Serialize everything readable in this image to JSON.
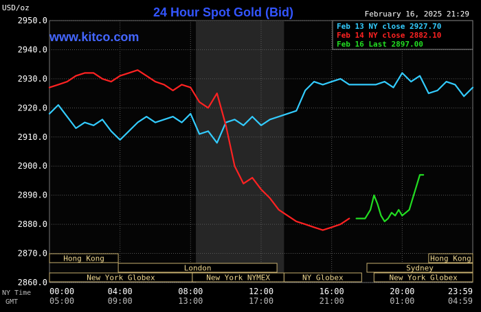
{
  "chart_data": {
    "type": "line",
    "title": "24 Hour Spot Gold (Bid)",
    "watermark": "www.kitco.com",
    "timestamp": "February 16, 2025 21:29",
    "y_unit_label": "USD/oz",
    "ylim": [
      2860,
      2950
    ],
    "y_ticks": [
      "2950.0",
      "2940.0",
      "2930.0",
      "2920.0",
      "2910.0",
      "2900.0",
      "2890.0",
      "2880.0",
      "2870.0",
      "2860.0"
    ],
    "x_ticks_ny": [
      "00:00",
      "04:00",
      "08:00",
      "12:00",
      "16:00",
      "20:00",
      "23:59"
    ],
    "x_ticks_gmt": [
      "05:00",
      "09:00",
      "13:00",
      "17:00",
      "21:00",
      "01:00",
      "04:59"
    ],
    "ny_time_label": "NY Time",
    "gmt_label": "GMT",
    "legend": [
      {
        "text": "Feb 13 NY close 2927.70",
        "color": "#33ccff"
      },
      {
        "text": "Feb 14 NY close 2882.10",
        "color": "#ff2222"
      },
      {
        "text": "Feb 16 Last 2897.00",
        "color": "#22dd22"
      }
    ],
    "series": [
      {
        "name": "Feb 13 NY close 2927.70",
        "color": "#33ccff",
        "x": [
          0,
          0.5,
          1,
          1.5,
          2,
          2.5,
          3,
          3.5,
          4,
          4.5,
          5,
          5.5,
          6,
          6.5,
          7,
          7.5,
          8,
          8.5,
          9,
          9.5,
          10,
          10.5,
          11,
          11.5,
          12,
          12.5,
          13,
          13.5,
          14,
          14.5,
          15,
          15.5,
          16,
          16.5,
          17,
          17.5,
          18,
          18.5,
          19,
          19.5,
          20,
          20.5,
          21,
          21.5,
          22,
          22.5,
          23,
          23.5,
          24
        ],
        "values": [
          2918,
          2921,
          2917,
          2913,
          2915,
          2914,
          2916,
          2912,
          2909,
          2912,
          2915,
          2917,
          2915,
          2916,
          2917,
          2915,
          2918,
          2911,
          2912,
          2908,
          2915,
          2916,
          2914,
          2917,
          2914,
          2916,
          2917,
          2918,
          2919,
          2926,
          2929,
          2928,
          2929,
          2930,
          2928,
          2928,
          2928,
          2928,
          2929,
          2927,
          2932,
          2929,
          2931,
          2925,
          2926,
          2929,
          2928,
          2924,
          2927
        ]
      },
      {
        "name": "Feb 14 NY close 2882.10",
        "color": "#ff2222",
        "x": [
          0,
          0.5,
          1,
          1.5,
          2,
          2.5,
          3,
          3.5,
          4,
          4.5,
          5,
          5.5,
          6,
          6.5,
          7,
          7.5,
          8,
          8.5,
          9,
          9.5,
          10,
          10.5,
          11,
          11.5,
          12,
          12.5,
          13,
          13.5,
          14,
          14.5,
          15,
          15.5,
          16,
          16.5,
          17
        ],
        "values": [
          2927,
          2928,
          2929,
          2931,
          2932,
          2932,
          2930,
          2929,
          2931,
          2932,
          2933,
          2931,
          2929,
          2928,
          2926,
          2928,
          2927,
          2922,
          2920,
          2925,
          2914,
          2900,
          2894,
          2896,
          2892,
          2889,
          2885,
          2883,
          2881,
          2880,
          2879,
          2878,
          2879,
          2880,
          2882
        ]
      },
      {
        "name": "Feb 16 Last 2897.00",
        "color": "#22dd22",
        "x": [
          17.4,
          17.9,
          18.2,
          18.4,
          18.6,
          18.8,
          19,
          19.2,
          19.4,
          19.6,
          19.8,
          20,
          20.2,
          20.4,
          20.6,
          20.8,
          21,
          21.2
        ],
        "values": [
          2882,
          2882,
          2885,
          2890,
          2887,
          2883,
          2881,
          2882,
          2884,
          2883,
          2885,
          2883,
          2884,
          2885,
          2889,
          2893,
          2897,
          2897
        ]
      }
    ],
    "sessions": [
      {
        "label": "Hong Kong",
        "row": 0,
        "from": 0,
        "to": 3.9
      },
      {
        "label": "Hong Kong",
        "row": 0,
        "from": 21.5,
        "to": 24
      },
      {
        "label": "London",
        "row": 1,
        "from": 3.9,
        "to": 12.9
      },
      {
        "label": "Sydney",
        "row": 1,
        "from": 18,
        "to": 24
      },
      {
        "label": "New York Globex",
        "row": 2,
        "from": 0,
        "to": 8.1
      },
      {
        "label": "New York NYMEX",
        "row": 2,
        "from": 8.1,
        "to": 13.3
      },
      {
        "label": "NY Globex",
        "row": 2,
        "from": 13.3,
        "to": 17.7
      },
      {
        "label": "New York Globex",
        "row": 2,
        "from": 18.4,
        "to": 24
      }
    ],
    "shaded_interval": [
      8.3,
      13.3
    ]
  }
}
